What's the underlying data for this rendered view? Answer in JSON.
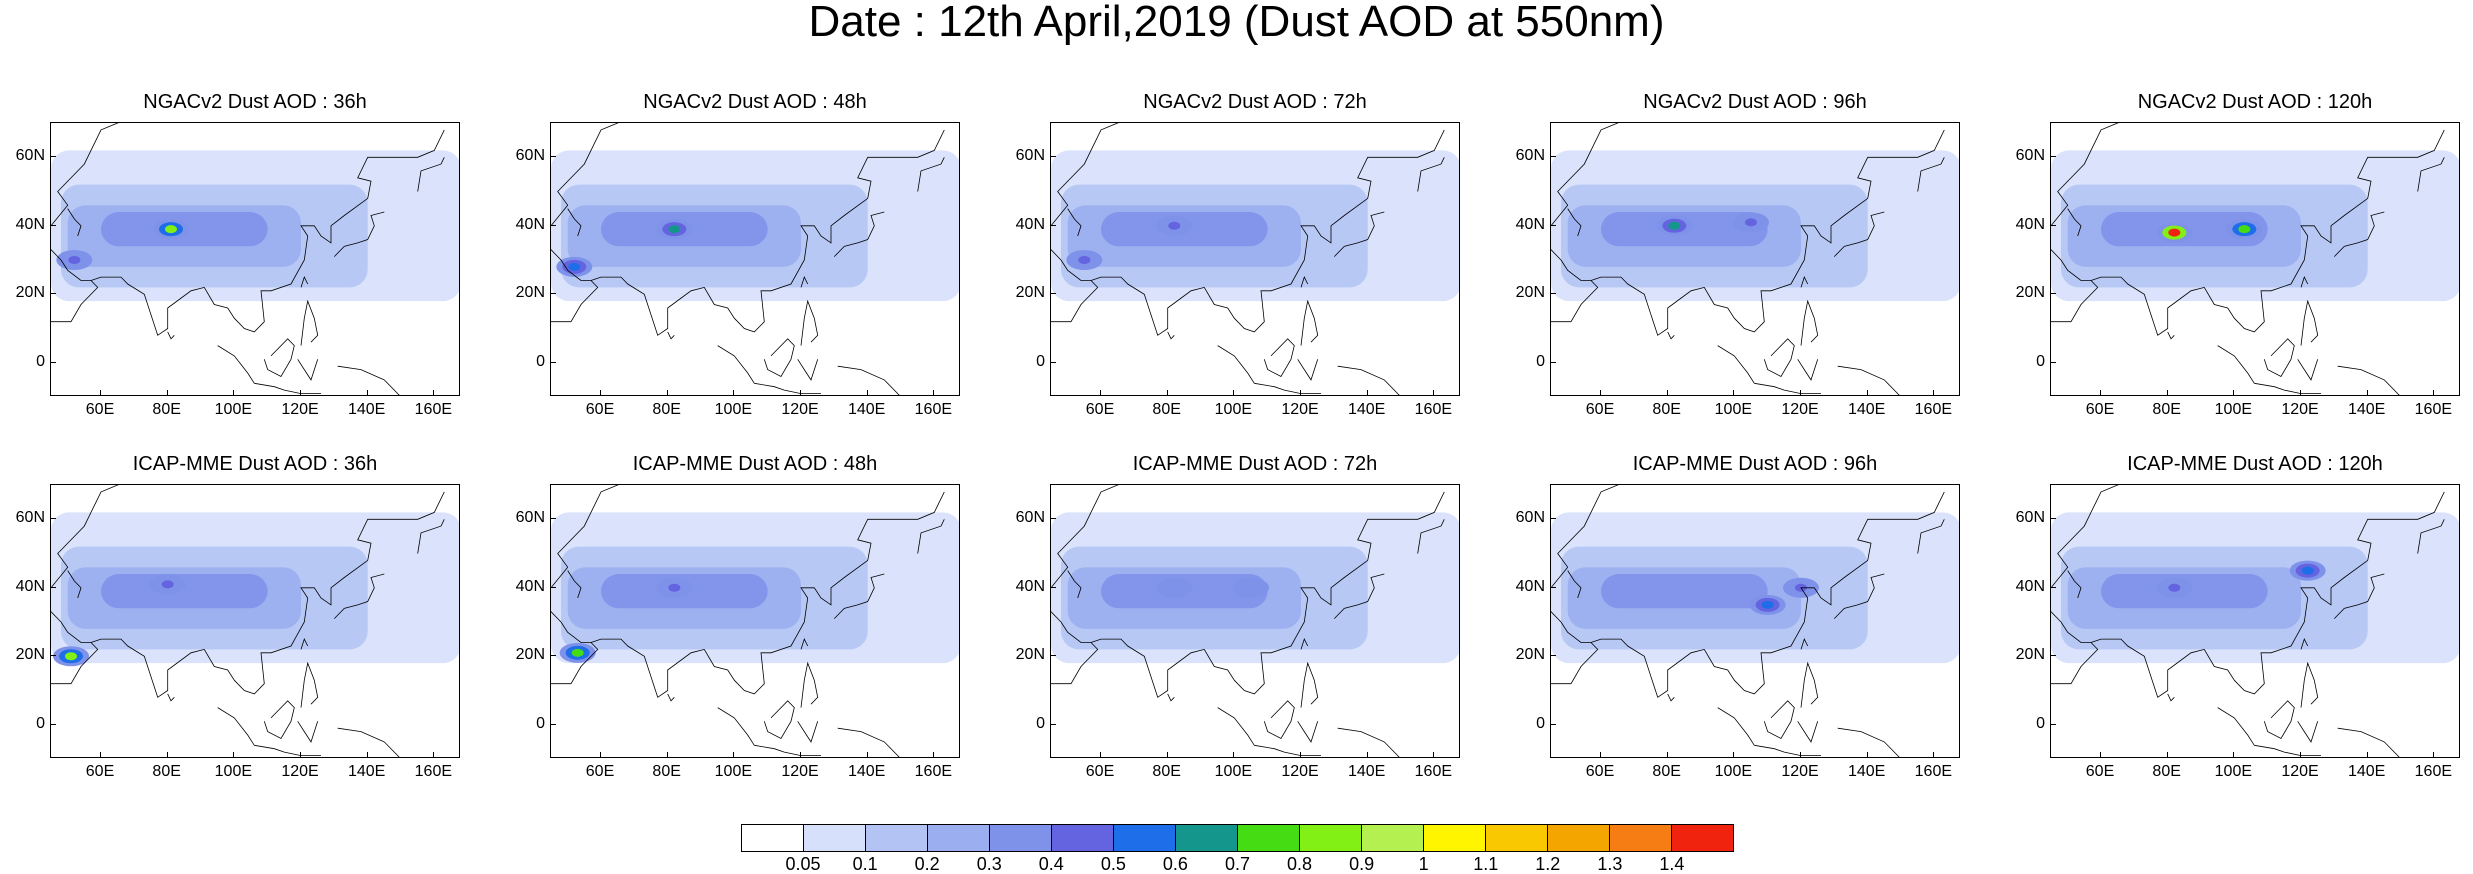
{
  "title": "Date : 12th April,2019 (Dust AOD at 550nm)",
  "lat_ticks": [
    "60N",
    "40N",
    "20N",
    "0"
  ],
  "lon_ticks": [
    "60E",
    "80E",
    "100E",
    "120E",
    "140E",
    "160E"
  ],
  "panels": [
    {
      "title": "NGACv2 Dust AOD : 36h",
      "model": "NGACv2",
      "lead": "36h",
      "hotspots": [
        {
          "lon": 81,
          "lat": 39,
          "aod": 0.8
        },
        {
          "lon": 52,
          "lat": 30,
          "aod": 0.4
        }
      ]
    },
    {
      "title": "NGACv2 Dust AOD : 48h",
      "model": "NGACv2",
      "lead": "48h",
      "hotspots": [
        {
          "lon": 82,
          "lat": 39,
          "aod": 0.6
        },
        {
          "lon": 52,
          "lat": 28,
          "aod": 0.5
        }
      ]
    },
    {
      "title": "NGACv2 Dust AOD : 72h",
      "model": "NGACv2",
      "lead": "72h",
      "hotspots": [
        {
          "lon": 82,
          "lat": 40,
          "aod": 0.4
        },
        {
          "lon": 55,
          "lat": 30,
          "aod": 0.4
        }
      ]
    },
    {
      "title": "NGACv2 Dust AOD : 96h",
      "model": "NGACv2",
      "lead": "96h",
      "hotspots": [
        {
          "lon": 82,
          "lat": 40,
          "aod": 0.6
        },
        {
          "lon": 105,
          "lat": 41,
          "aod": 0.4
        }
      ]
    },
    {
      "title": "NGACv2 Dust AOD : 120h",
      "model": "NGACv2",
      "lead": "120h",
      "hotspots": [
        {
          "lon": 82,
          "lat": 38,
          "aod": 1.4
        },
        {
          "lon": 103,
          "lat": 39,
          "aod": 0.7
        }
      ]
    },
    {
      "title": "ICAP-MME Dust AOD : 36h",
      "model": "ICAP-MME",
      "lead": "36h",
      "hotspots": [
        {
          "lon": 51,
          "lat": 20,
          "aod": 0.8
        },
        {
          "lon": 80,
          "lat": 41,
          "aod": 0.4
        }
      ]
    },
    {
      "title": "ICAP-MME Dust AOD : 48h",
      "model": "ICAP-MME",
      "lead": "48h",
      "hotspots": [
        {
          "lon": 53,
          "lat": 21,
          "aod": 0.7
        },
        {
          "lon": 82,
          "lat": 40,
          "aod": 0.4
        }
      ]
    },
    {
      "title": "ICAP-MME Dust AOD : 72h",
      "model": "ICAP-MME",
      "lead": "72h",
      "hotspots": [
        {
          "lon": 82,
          "lat": 40,
          "aod": 0.3
        },
        {
          "lon": 105,
          "lat": 40,
          "aod": 0.3
        }
      ]
    },
    {
      "title": "ICAP-MME Dust AOD : 96h",
      "model": "ICAP-MME",
      "lead": "96h",
      "hotspots": [
        {
          "lon": 110,
          "lat": 35,
          "aod": 0.5
        },
        {
          "lon": 120,
          "lat": 40,
          "aod": 0.4
        }
      ]
    },
    {
      "title": "ICAP-MME Dust AOD : 120h",
      "model": "ICAP-MME",
      "lead": "120h",
      "hotspots": [
        {
          "lon": 122,
          "lat": 45,
          "aod": 0.5
        },
        {
          "lon": 82,
          "lat": 40,
          "aod": 0.4
        }
      ]
    }
  ],
  "colorbar": {
    "levels": [
      "0.05",
      "0.1",
      "0.2",
      "0.3",
      "0.4",
      "0.5",
      "0.6",
      "0.7",
      "0.8",
      "0.9",
      "1",
      "1.1",
      "1.2",
      "1.3",
      "1.4"
    ],
    "colors": [
      "#ffffff",
      "#d6e0fb",
      "#b3c4f4",
      "#9aaef0",
      "#7f92ea",
      "#6464e0",
      "#1e6eea",
      "#14968c",
      "#46dc14",
      "#82f014",
      "#b4f050",
      "#fff500",
      "#fac800",
      "#f5a500",
      "#f57d14",
      "#f0230f"
    ]
  }
}
